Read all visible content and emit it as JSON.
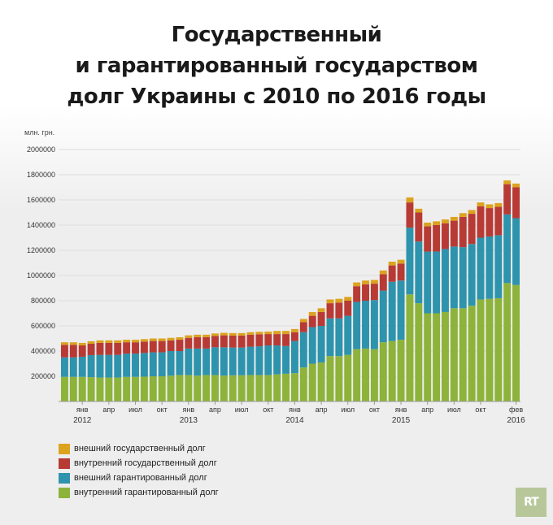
{
  "title_lines": [
    "Государственный",
    "и гарантированный государством",
    "долг Украины с 2010 по 2016 годы"
  ],
  "logo": "RT",
  "chart_data": {
    "type": "bar",
    "stacked": true,
    "ylabel": "млн. грн.",
    "ylim": [
      0,
      2000000
    ],
    "yticks": [
      200000,
      400000,
      600000,
      800000,
      1000000,
      1200000,
      1400000,
      1600000,
      1800000,
      2000000
    ],
    "grid": true,
    "legend_position": "bottom-left",
    "categories": [
      "2011-11",
      "2011-12",
      "2012-01",
      "2012-02",
      "2012-03",
      "2012-04",
      "2012-05",
      "2012-06",
      "2012-07",
      "2012-08",
      "2012-09",
      "2012-10",
      "2012-11",
      "2012-12",
      "2013-01",
      "2013-02",
      "2013-03",
      "2013-04",
      "2013-05",
      "2013-06",
      "2013-07",
      "2013-08",
      "2013-09",
      "2013-10",
      "2013-11",
      "2013-12",
      "2014-01",
      "2014-02",
      "2014-03",
      "2014-04",
      "2014-05",
      "2014-06",
      "2014-07",
      "2014-08",
      "2014-09",
      "2014-10",
      "2014-11",
      "2014-12",
      "2015-01",
      "2015-02",
      "2015-03",
      "2015-04",
      "2015-05",
      "2015-06",
      "2015-07",
      "2015-08",
      "2015-09",
      "2015-10",
      "2015-11",
      "2015-12",
      "2016-01",
      "2016-02"
    ],
    "x_tick_labels": [
      {
        "category": "2012-01",
        "month": "янв",
        "year": "2012"
      },
      {
        "category": "2012-04",
        "month": "апр",
        "year": ""
      },
      {
        "category": "2012-07",
        "month": "июл",
        "year": ""
      },
      {
        "category": "2012-10",
        "month": "окт",
        "year": ""
      },
      {
        "category": "2013-01",
        "month": "янв",
        "year": "2013"
      },
      {
        "category": "2013-04",
        "month": "апр",
        "year": ""
      },
      {
        "category": "2013-07",
        "month": "июл",
        "year": ""
      },
      {
        "category": "2013-10",
        "month": "окт",
        "year": ""
      },
      {
        "category": "2014-01",
        "month": "янв",
        "year": "2014"
      },
      {
        "category": "2014-04",
        "month": "апр",
        "year": ""
      },
      {
        "category": "2014-07",
        "month": "июл",
        "year": ""
      },
      {
        "category": "2014-10",
        "month": "окт",
        "year": ""
      },
      {
        "category": "2015-01",
        "month": "янв",
        "year": "2015"
      },
      {
        "category": "2015-04",
        "month": "апр",
        "year": ""
      },
      {
        "category": "2015-07",
        "month": "июл",
        "year": ""
      },
      {
        "category": "2015-10",
        "month": "окт",
        "year": ""
      },
      {
        "category": "2016-02",
        "month": "фев",
        "year": "2016"
      }
    ],
    "series": [
      {
        "name": "внутренний гарантированный долг",
        "color": "#8db33a",
        "values": [
          195000,
          195000,
          195000,
          193000,
          190000,
          190000,
          190000,
          195000,
          195000,
          197000,
          200000,
          200000,
          205000,
          210000,
          210000,
          205000,
          210000,
          210000,
          205000,
          208000,
          208000,
          210000,
          210000,
          210000,
          215000,
          220000,
          225000,
          270000,
          300000,
          310000,
          360000,
          360000,
          370000,
          415000,
          420000,
          415000,
          470000,
          480000,
          490000,
          850000,
          780000,
          700000,
          700000,
          710000,
          740000,
          740000,
          760000,
          810000,
          815000,
          820000,
          940000,
          925000
        ]
      },
      {
        "name": "внешний гарантированный долг",
        "color": "#2e93ad",
        "values": [
          155000,
          155000,
          160000,
          175000,
          180000,
          180000,
          180000,
          185000,
          185000,
          188000,
          190000,
          190000,
          195000,
          190000,
          210000,
          215000,
          210000,
          220000,
          225000,
          220000,
          220000,
          225000,
          228000,
          235000,
          230000,
          220000,
          255000,
          280000,
          290000,
          290000,
          300000,
          300000,
          310000,
          375000,
          380000,
          390000,
          410000,
          470000,
          470000,
          530000,
          490000,
          490000,
          490000,
          500000,
          490000,
          485000,
          490000,
          490000,
          495000,
          500000,
          545000,
          530000
        ]
      },
      {
        "name": "внутренний государственный долг",
        "color": "#b83a35",
        "values": [
          100000,
          100000,
          90000,
          90000,
          95000,
          95000,
          95000,
          90000,
          90000,
          90000,
          90000,
          90000,
          85000,
          90000,
          85000,
          90000,
          90000,
          90000,
          95000,
          95000,
          95000,
          95000,
          95000,
          90000,
          90000,
          95000,
          70000,
          80000,
          90000,
          110000,
          120000,
          125000,
          120000,
          125000,
          130000,
          130000,
          130000,
          130000,
          135000,
          200000,
          230000,
          200000,
          210000,
          205000,
          205000,
          240000,
          240000,
          250000,
          225000,
          225000,
          240000,
          245000
        ]
      },
      {
        "name": "внешний государственный долг",
        "color": "#dba31e",
        "values": [
          20000,
          20000,
          20000,
          20000,
          20000,
          20000,
          20000,
          20000,
          20000,
          20000,
          20000,
          20000,
          20000,
          20000,
          20000,
          20000,
          20000,
          20000,
          20000,
          20000,
          20000,
          20000,
          20000,
          20000,
          25000,
          25000,
          25000,
          25000,
          30000,
          30000,
          30000,
          30000,
          30000,
          30000,
          30000,
          30000,
          30000,
          30000,
          30000,
          40000,
          30000,
          30000,
          30000,
          30000,
          30000,
          30000,
          30000,
          30000,
          30000,
          30000,
          30000,
          30000
        ]
      }
    ]
  }
}
